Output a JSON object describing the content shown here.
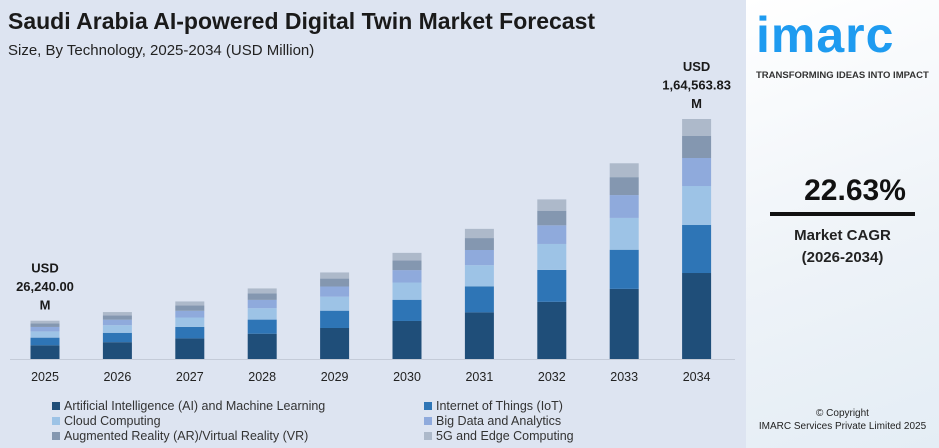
{
  "title": "Saudi Arabia AI-powered Digital Twin Market Forecast",
  "subtitle": "Size, By Technology, 2025-2034 (USD Million)",
  "brand": {
    "logo": "imarc",
    "tagline": "TRANSFORMING IDEAS INTO IMPACT",
    "accent": "#1e9bf0"
  },
  "cagr": {
    "value": "22.63%",
    "label": "Market CAGR",
    "period": "(2026-2034)"
  },
  "copyright": {
    "line1": "© Copyright",
    "line2": "IMARC Services Private Limited 2025"
  },
  "chart_data": {
    "type": "bar",
    "stacked": true,
    "title": "Saudi Arabia AI-powered Digital Twin Market Forecast",
    "subtitle": "Size, By Technology, 2025-2034 (USD Million)",
    "categories": [
      "2025",
      "2026",
      "2027",
      "2028",
      "2029",
      "2030",
      "2031",
      "2032",
      "2033",
      "2034"
    ],
    "series": [
      {
        "name": "Artificial Intelligence (AI) and Machine Learning",
        "color": "#1f4e79",
        "values": [
          9402,
          11529,
          14139,
          17338,
          21262,
          26074,
          31975,
          39209,
          48084,
          58963
        ]
      },
      {
        "name": "Internet of Things (IoT)",
        "color": "#2e75b6",
        "values": [
          5248,
          6436,
          7892,
          9678,
          11868,
          14554,
          17848,
          21886,
          26840,
          32913
        ]
      },
      {
        "name": "Cloud Computing",
        "color": "#9dc3e6",
        "values": [
          4264,
          5229,
          6412,
          7863,
          9643,
          11825,
          14502,
          17782,
          21808,
          26742
        ]
      },
      {
        "name": "Big Data and Analytics",
        "color": "#8faadc",
        "values": [
          3062,
          3755,
          4605,
          5647,
          6925,
          8492,
          10414,
          12770,
          15661,
          19205
        ]
      },
      {
        "name": "Augmented Reality (AR)/Virtual Reality (VR)",
        "color": "#8497b0",
        "values": [
          2406,
          2951,
          3618,
          4437,
          5441,
          6673,
          8183,
          10035,
          12306,
          15090
        ]
      },
      {
        "name": "5G and Edge Computing",
        "color": "#adb9ca",
        "values": [
          1858,
          2278,
          2794,
          3427,
          4201,
          5152,
          6318,
          7748,
          9501,
          11651
        ]
      }
    ],
    "annotations": [
      {
        "category": "2025",
        "lines": [
          "USD",
          "26,240.00",
          "M"
        ]
      },
      {
        "category": "2034",
        "lines": [
          "USD",
          "1,64,563.83",
          "M"
        ]
      }
    ],
    "ylim": [
      0,
      164564
    ],
    "grid": false,
    "legend": "bottom"
  }
}
